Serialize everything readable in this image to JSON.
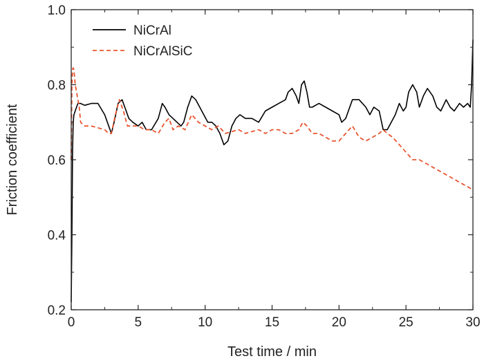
{
  "chart_data": {
    "type": "line",
    "xlabel": "Test time / min",
    "ylabel": "Friction coefficient",
    "xlim": [
      0,
      30
    ],
    "ylim": [
      0.2,
      1.0
    ],
    "xticks": [
      0,
      5,
      10,
      15,
      20,
      25,
      30
    ],
    "yticks": [
      0.2,
      0.4,
      0.6,
      0.8,
      1.0
    ],
    "ytick_labels": [
      "0.2",
      "0.4",
      "0.6",
      "0.8",
      "1.0"
    ],
    "grid": false,
    "legend_position": "top-left",
    "series": [
      {
        "name": "NiCrAl",
        "color": "#000000",
        "style": "solid",
        "x": [
          0,
          0.05,
          0.1,
          0.15,
          0.2,
          0.3,
          0.4,
          0.5,
          0.7,
          1.0,
          1.5,
          2.0,
          2.5,
          2.8,
          3.0,
          3.2,
          3.5,
          3.8,
          4.0,
          4.3,
          4.6,
          5.0,
          5.3,
          5.6,
          6.0,
          6.5,
          6.8,
          7.0,
          7.3,
          7.6,
          7.9,
          8.2,
          8.4,
          8.7,
          9.0,
          9.3,
          9.6,
          9.9,
          10.2,
          10.5,
          10.8,
          11.1,
          11.4,
          11.7,
          12.0,
          12.3,
          12.6,
          13.0,
          13.5,
          14.0,
          14.5,
          15.0,
          15.5,
          16.0,
          16.2,
          16.5,
          16.8,
          17.0,
          17.2,
          17.4,
          17.6,
          17.8,
          18.0,
          18.5,
          19.0,
          19.5,
          20.0,
          20.2,
          20.5,
          21.0,
          21.5,
          22.0,
          22.3,
          22.6,
          23.0,
          23.3,
          23.6,
          23.9,
          24.2,
          24.5,
          24.8,
          25.0,
          25.2,
          25.5,
          25.8,
          26.0,
          26.3,
          26.6,
          27.0,
          27.3,
          27.6,
          28.0,
          28.3,
          28.6,
          29.0,
          29.3,
          29.6,
          29.8,
          29.9,
          30.0
        ],
        "y": [
          0.22,
          0.4,
          0.62,
          0.7,
          0.72,
          0.73,
          0.74,
          0.75,
          0.75,
          0.745,
          0.75,
          0.75,
          0.72,
          0.69,
          0.67,
          0.7,
          0.75,
          0.76,
          0.74,
          0.71,
          0.7,
          0.69,
          0.7,
          0.68,
          0.68,
          0.71,
          0.75,
          0.74,
          0.72,
          0.71,
          0.7,
          0.69,
          0.7,
          0.74,
          0.77,
          0.76,
          0.74,
          0.72,
          0.7,
          0.7,
          0.69,
          0.67,
          0.64,
          0.65,
          0.69,
          0.71,
          0.72,
          0.71,
          0.71,
          0.7,
          0.73,
          0.74,
          0.75,
          0.76,
          0.78,
          0.79,
          0.77,
          0.75,
          0.8,
          0.81,
          0.78,
          0.74,
          0.74,
          0.75,
          0.74,
          0.73,
          0.72,
          0.7,
          0.71,
          0.76,
          0.76,
          0.74,
          0.72,
          0.74,
          0.73,
          0.68,
          0.68,
          0.7,
          0.72,
          0.75,
          0.73,
          0.74,
          0.78,
          0.8,
          0.78,
          0.74,
          0.77,
          0.79,
          0.77,
          0.74,
          0.73,
          0.76,
          0.74,
          0.73,
          0.75,
          0.74,
          0.75,
          0.74,
          0.8,
          0.92
        ]
      },
      {
        "name": "NiCrAlSiC",
        "color": "#e8542e",
        "style": "dashed",
        "x": [
          0,
          0.05,
          0.1,
          0.15,
          0.2,
          0.3,
          0.4,
          0.5,
          0.6,
          0.7,
          1.0,
          1.5,
          2.0,
          2.5,
          2.8,
          3.0,
          3.3,
          3.6,
          3.9,
          4.2,
          4.5,
          5.0,
          5.5,
          6.0,
          6.5,
          7.0,
          7.3,
          7.6,
          8.0,
          8.5,
          9.0,
          9.5,
          10.0,
          10.5,
          11.0,
          11.5,
          12.0,
          12.5,
          13.0,
          13.5,
          14.0,
          14.5,
          15.0,
          15.5,
          16.0,
          16.5,
          17.0,
          17.3,
          17.6,
          18.0,
          18.5,
          19.0,
          19.5,
          20.0,
          20.5,
          21.0,
          21.5,
          22.0,
          22.5,
          23.0,
          23.3,
          23.6,
          24.0,
          24.5,
          25.0,
          25.5,
          26.0,
          26.5,
          27.0,
          27.5,
          28.0,
          28.5,
          29.0,
          29.5,
          30.0
        ],
        "y": [
          0.6,
          0.8,
          0.84,
          0.845,
          0.84,
          0.8,
          0.78,
          0.76,
          0.74,
          0.7,
          0.69,
          0.69,
          0.685,
          0.68,
          0.67,
          0.67,
          0.72,
          0.76,
          0.73,
          0.69,
          0.69,
          0.69,
          0.68,
          0.68,
          0.67,
          0.7,
          0.71,
          0.68,
          0.69,
          0.68,
          0.72,
          0.7,
          0.69,
          0.68,
          0.69,
          0.67,
          0.675,
          0.68,
          0.67,
          0.675,
          0.68,
          0.67,
          0.68,
          0.68,
          0.67,
          0.67,
          0.68,
          0.7,
          0.69,
          0.67,
          0.67,
          0.66,
          0.65,
          0.65,
          0.67,
          0.69,
          0.66,
          0.65,
          0.66,
          0.67,
          0.68,
          0.67,
          0.66,
          0.64,
          0.62,
          0.6,
          0.6,
          0.59,
          0.58,
          0.57,
          0.56,
          0.55,
          0.54,
          0.53,
          0.52
        ]
      }
    ]
  }
}
